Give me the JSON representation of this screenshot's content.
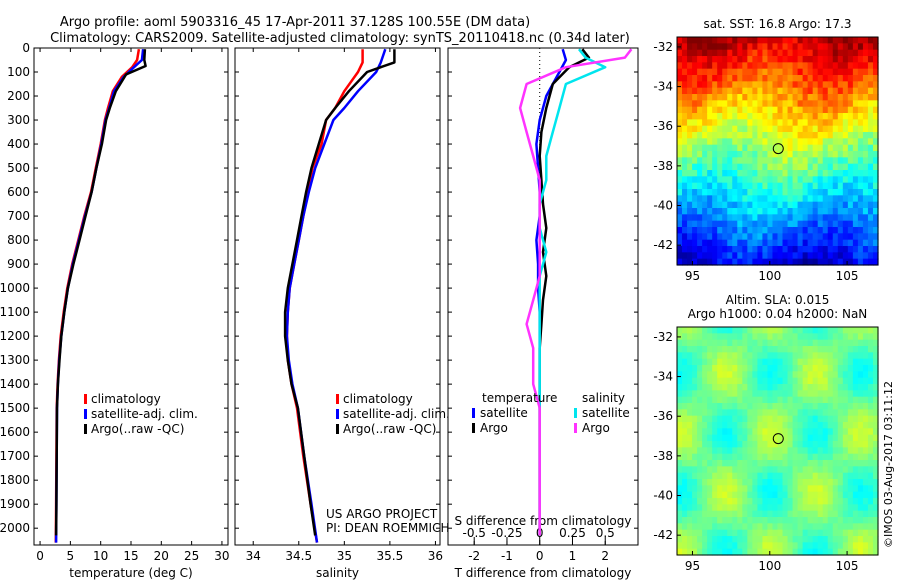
{
  "header": {
    "line1": "Argo profile: aoml 5903316_45 17-Apr-2011 37.128S 100.55E (DM data)",
    "line2": "Climatology: CARS2009. Satellite-adjusted climatology: synTS_20110418.nc (0.34d later)"
  },
  "colors": {
    "climatology": "#ff0000",
    "satellite": "#0000ff",
    "argo": "#000000",
    "salinity_satellite": "#00e5ee",
    "salinity_argo": "#ff33ff"
  },
  "credit": "©IMOS 03-Aug-2017 03:11:12",
  "project_text": {
    "line1": "US ARGO PROJECT",
    "line2": "PI: DEAN ROEMMICH"
  },
  "chart_data": [
    {
      "id": "temperature",
      "type": "line",
      "xlabel": "temperature (deg C)",
      "xlim": [
        -1,
        31
      ],
      "ylim": [
        2070,
        0
      ],
      "xticks": [
        0,
        5,
        10,
        15,
        20,
        25,
        30
      ],
      "yticks": [
        0,
        100,
        200,
        300,
        400,
        500,
        600,
        700,
        800,
        900,
        1000,
        1100,
        1200,
        1300,
        1400,
        1500,
        1600,
        1700,
        1800,
        1900,
        2000
      ],
      "legend": [
        "climatology",
        "satellite-adj. clim.",
        "Argo(..raw -QC)"
      ],
      "series": [
        {
          "name": "climatology",
          "x": [
            16.3,
            16,
            15.2,
            13.5,
            12,
            11.2,
            10.7,
            10,
            9.2,
            8.4,
            7.3,
            6.3,
            5.3,
            4.5,
            3.9,
            3.4,
            3.1,
            2.9,
            2.75,
            2.7,
            2.65,
            2.6
          ],
          "y": [
            5,
            50,
            80,
            120,
            180,
            250,
            300,
            400,
            500,
            600,
            700,
            800,
            900,
            1000,
            1100,
            1200,
            1300,
            1400,
            1500,
            1700,
            1900,
            2060
          ]
        },
        {
          "name": "satellite-adj. clim.",
          "x": [
            17,
            16.8,
            15.5,
            13.8,
            12.2,
            11.4,
            10.8,
            10.1,
            9.3,
            8.5,
            7.4,
            6.4,
            5.4,
            4.6,
            4,
            3.5,
            3.15,
            2.95,
            2.8,
            2.75,
            2.7,
            2.65
          ],
          "y": [
            5,
            50,
            80,
            120,
            180,
            250,
            300,
            400,
            500,
            600,
            700,
            800,
            900,
            1000,
            1100,
            1200,
            1300,
            1400,
            1500,
            1700,
            1900,
            2060
          ]
        },
        {
          "name": "Argo(..raw -QC)",
          "x": [
            17.3,
            17.2,
            17.4,
            14.2,
            12.5,
            11.5,
            10.9,
            10.2,
            9.3,
            8.5,
            7.5,
            6.5,
            5.5,
            4.6,
            4,
            3.5,
            3.2,
            2.95,
            2.8,
            2.75,
            2.7,
            2.65
          ],
          "y": [
            5,
            50,
            75,
            110,
            180,
            250,
            300,
            400,
            500,
            600,
            700,
            800,
            900,
            1000,
            1100,
            1200,
            1300,
            1400,
            1500,
            1700,
            1900,
            2030
          ]
        }
      ]
    },
    {
      "id": "salinity",
      "type": "line",
      "xlabel": "salinity",
      "xlim": [
        33.8,
        36.05
      ],
      "ylim": [
        2070,
        0
      ],
      "xticks": [
        34,
        34.5,
        35,
        35.5,
        36
      ],
      "legend": [
        "climatology",
        "satellite-adj. clim.",
        "Argo(..raw -QC)"
      ],
      "series": [
        {
          "name": "climatology",
          "x": [
            35.2,
            35.2,
            35.15,
            35.0,
            34.9,
            34.8,
            34.75,
            34.65,
            34.6,
            34.55,
            34.5,
            34.45,
            34.4,
            34.38,
            34.37,
            34.38,
            34.42,
            34.48,
            34.55,
            34.63,
            34.7
          ],
          "y": [
            5,
            60,
            100,
            180,
            250,
            300,
            400,
            500,
            600,
            700,
            800,
            900,
            1000,
            1100,
            1200,
            1300,
            1400,
            1500,
            1700,
            1900,
            2060
          ]
        },
        {
          "name": "satellite-adj. clim.",
          "x": [
            35.45,
            35.4,
            35.35,
            35.15,
            35.0,
            34.88,
            34.78,
            34.68,
            34.61,
            34.55,
            34.5,
            34.45,
            34.4,
            34.38,
            34.37,
            34.39,
            34.43,
            34.49,
            34.56,
            34.64,
            34.7
          ],
          "y": [
            5,
            60,
            100,
            180,
            250,
            300,
            400,
            500,
            600,
            700,
            800,
            900,
            1000,
            1100,
            1200,
            1300,
            1400,
            1500,
            1700,
            1900,
            2060
          ]
        },
        {
          "name": "Argo(..raw -QC)",
          "x": [
            35.55,
            35.55,
            35.25,
            35.05,
            34.9,
            34.8,
            34.72,
            34.64,
            34.58,
            34.53,
            34.48,
            34.43,
            34.38,
            34.35,
            34.35,
            34.38,
            34.42,
            34.49,
            34.56,
            34.63,
            34.68
          ],
          "y": [
            5,
            60,
            100,
            180,
            250,
            300,
            400,
            500,
            600,
            700,
            800,
            900,
            1000,
            1100,
            1200,
            1300,
            1400,
            1500,
            1700,
            1900,
            2030
          ]
        }
      ]
    },
    {
      "id": "difference",
      "type": "line",
      "xlabel": "T difference from climatology",
      "xlabel_top": "S difference from climatology",
      "xlim": [
        -2.8,
        3
      ],
      "ylim": [
        2070,
        0
      ],
      "xticks": [
        -2,
        -1,
        0,
        1,
        2
      ],
      "xticks_top": [
        -0.5,
        -0.25,
        0,
        0.25,
        0.5
      ],
      "legend_titles": [
        "temperature",
        "salinity"
      ],
      "legend": [
        "satellite",
        "Argo",
        "satellite",
        "Argo"
      ],
      "series": [
        {
          "name": "temperature satellite",
          "x": [
            0.7,
            0.8,
            0.6,
            0.2,
            0,
            -0.1,
            -0.05,
            0,
            0,
            -0.1,
            -0.05,
            -0.05,
            0,
            0,
            0,
            0,
            0,
            0,
            0,
            0
          ],
          "y": [
            5,
            50,
            100,
            200,
            300,
            400,
            500,
            600,
            700,
            800,
            900,
            1000,
            1100,
            1200,
            1300,
            1400,
            1500,
            1700,
            1900,
            2030
          ]
        },
        {
          "name": "temperature Argo",
          "x": [
            1.3,
            1.5,
            0.9,
            0.4,
            0.2,
            0.05,
            0,
            0.05,
            0.1,
            0.2,
            0.1,
            0.2,
            0.1,
            0.05,
            0,
            0,
            0,
            0,
            0,
            0
          ],
          "y": [
            5,
            40,
            80,
            150,
            250,
            350,
            450,
            550,
            650,
            750,
            850,
            950,
            1050,
            1150,
            1250,
            1400,
            1500,
            1700,
            1900,
            2030
          ]
        },
        {
          "name": "salinity satellite",
          "x": [
            0.3,
            0.35,
            0.5,
            0.2,
            0.15,
            0.1,
            0.05,
            0.05,
            0,
            0,
            0.05,
            0,
            0,
            0,
            0,
            0,
            0,
            0,
            0,
            0
          ],
          "y": [
            5,
            40,
            80,
            150,
            250,
            350,
            450,
            550,
            650,
            750,
            850,
            950,
            1050,
            1150,
            1250,
            1400,
            1500,
            1700,
            1900,
            2030
          ]
        },
        {
          "name": "salinity Argo",
          "x": [
            0.7,
            0.65,
            0.2,
            -0.1,
            -0.15,
            -0.1,
            -0.05,
            0,
            0,
            0,
            0,
            0,
            -0.05,
            -0.1,
            -0.05,
            -0.05,
            0,
            0,
            0,
            0
          ],
          "y": [
            5,
            40,
            80,
            150,
            250,
            350,
            450,
            550,
            650,
            750,
            850,
            950,
            1050,
            1150,
            1250,
            1400,
            1500,
            1700,
            1900,
            2030
          ]
        }
      ]
    },
    {
      "id": "sst-map",
      "type": "heatmap",
      "title": "sat. SST: 16.8 Argo: 17.3",
      "xlim": [
        94,
        107
      ],
      "ylim": [
        -43,
        -31.5
      ],
      "xticks": [
        95,
        100,
        105
      ],
      "yticks": [
        -32,
        -34,
        -36,
        -38,
        -40,
        -42
      ],
      "marker": {
        "x": 100.55,
        "y": -37.128
      }
    },
    {
      "id": "sla-map",
      "type": "heatmap",
      "title": "Altim. SLA: 0.015",
      "subtitle": "Argo h1000: 0.04 h2000: NaN",
      "xlim": [
        94,
        107
      ],
      "ylim": [
        -43,
        -31.5
      ],
      "xticks": [
        95,
        100,
        105
      ],
      "yticks": [
        -32,
        -34,
        -36,
        -38,
        -40,
        -42
      ],
      "marker": {
        "x": 100.55,
        "y": -37.128
      }
    }
  ]
}
